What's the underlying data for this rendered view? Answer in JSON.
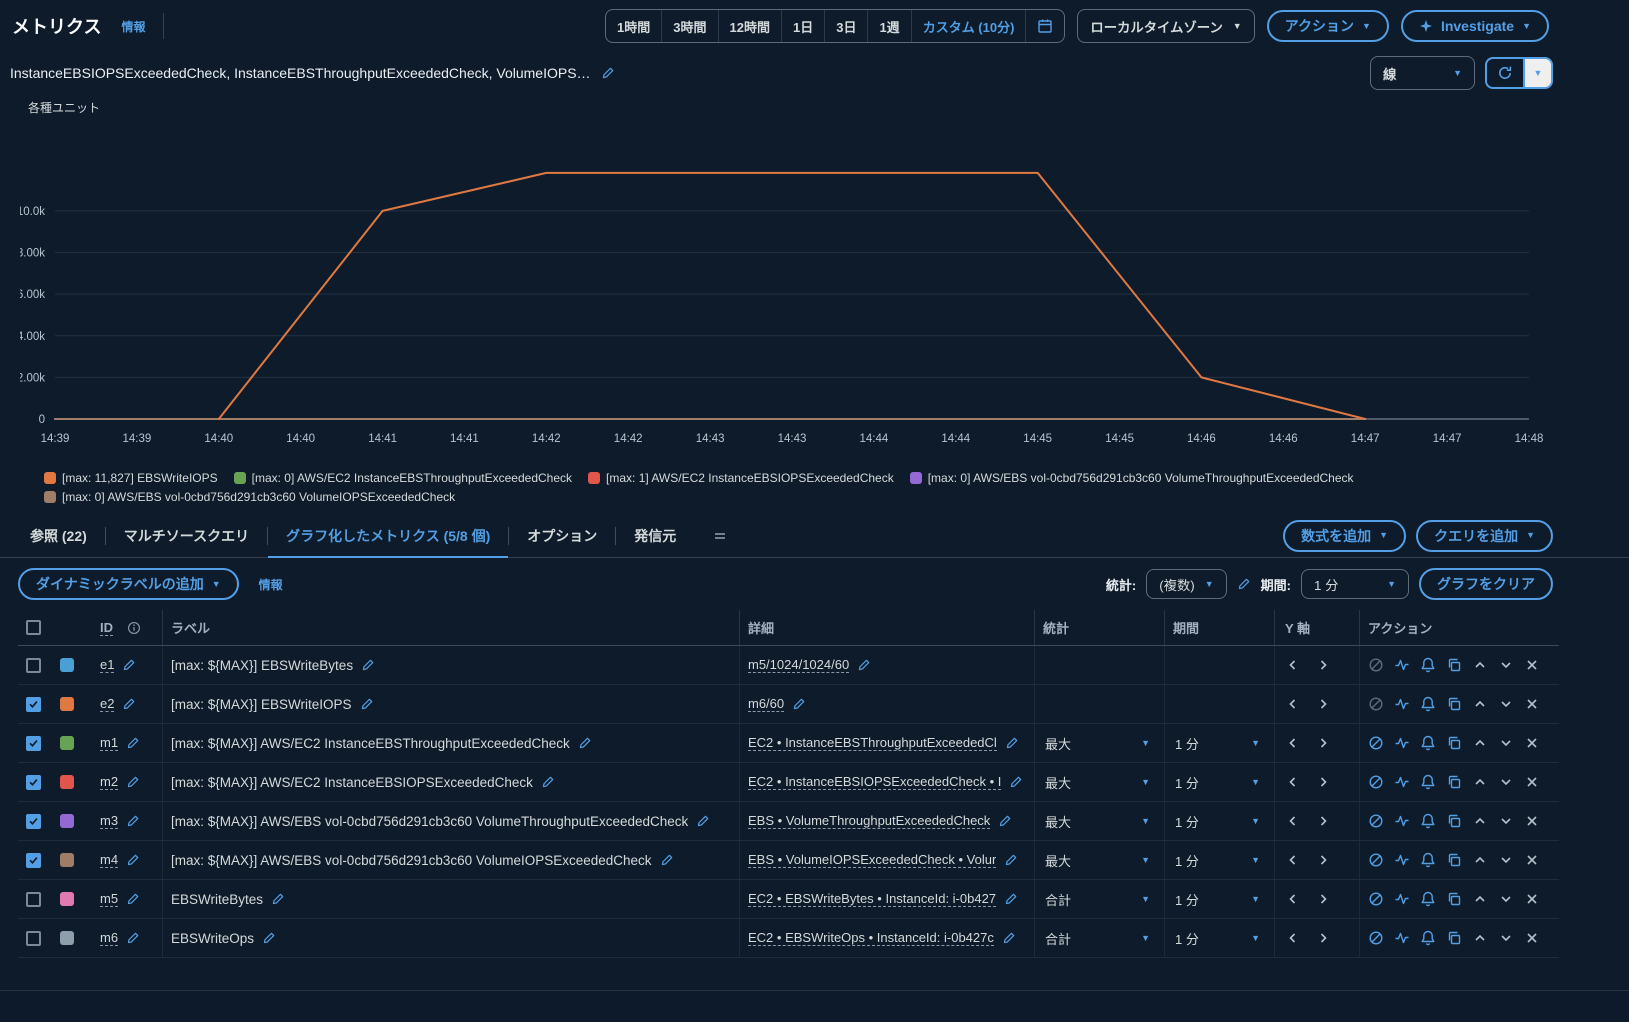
{
  "header": {
    "title": "メトリクス",
    "info": "情報",
    "time_ranges": [
      "1時間",
      "3時間",
      "12時間",
      "1日",
      "3日",
      "1週"
    ],
    "custom_range": "カスタム (10分)",
    "timezone_select": "ローカルタイムゾーン",
    "actions_button": "アクション",
    "investigate_button": "Investigate"
  },
  "graph_header": {
    "title": "InstanceEBSIOPSExceededCheck, InstanceEBSThroughputExceededCheck, VolumeIOPS…",
    "chart_type_select": "線"
  },
  "chart_data": {
    "type": "line",
    "ylabel": "各種ユニット",
    "x_ticks": [
      "14:39",
      "14:39",
      "14:40",
      "14:40",
      "14:41",
      "14:41",
      "14:42",
      "14:42",
      "14:43",
      "14:43",
      "14:44",
      "14:44",
      "14:45",
      "14:45",
      "14:46",
      "14:46",
      "14:47",
      "14:47",
      "14:48"
    ],
    "y_ticks": [
      {
        "label": "0",
        "value": 0
      },
      {
        "label": "2.00k",
        "value": 2000
      },
      {
        "label": "4.00k",
        "value": 4000
      },
      {
        "label": "6.00k",
        "value": 6000
      },
      {
        "label": "8.00k",
        "value": 8000
      },
      {
        "label": "10.0k",
        "value": 10000
      }
    ],
    "ylim": [
      0,
      13600
    ],
    "x_range_minutes": [
      0,
      9
    ],
    "grid": true,
    "legend_position": "bottom",
    "series": [
      {
        "name": "EBSWriteIOPS",
        "color": "#e07941",
        "legend_label": "[max: 11,827] EBSWriteIOPS",
        "points": [
          [
            1,
            0
          ],
          [
            2,
            10000
          ],
          [
            3,
            11827
          ],
          [
            6,
            11827
          ],
          [
            7,
            2000
          ],
          [
            8,
            0
          ]
        ]
      },
      {
        "name": "AWS/EC2 InstanceEBSThroughputExceededCheck",
        "color": "#67a353",
        "legend_label": "[max: 0] AWS/EC2 InstanceEBSThroughputExceededCheck",
        "points": [
          [
            0,
            0
          ],
          [
            8,
            0
          ]
        ]
      },
      {
        "name": "AWS/EC2 InstanceEBSIOPSExceededCheck",
        "color": "#e0564b",
        "legend_label": "[max: 1] AWS/EC2 InstanceEBSIOPSExceededCheck",
        "points": [
          [
            0,
            0
          ],
          [
            8,
            0
          ]
        ]
      },
      {
        "name": "AWS/EBS vol-0cbd756d291cb3c60 VolumeThroughputExceededCheck",
        "color": "#9469d6",
        "legend_label": "[max: 0] AWS/EBS vol-0cbd756d291cb3c60 VolumeThroughputExceededCheck",
        "points": [
          [
            0,
            0
          ],
          [
            8,
            0
          ]
        ]
      },
      {
        "name": "AWS/EBS vol-0cbd756d291cb3c60 VolumeIOPSExceededCheck",
        "color": "#a07d67",
        "legend_label": "[max: 0] AWS/EBS vol-0cbd756d291cb3c60 VolumeIOPSExceededCheck",
        "points": [
          [
            0,
            0
          ],
          [
            8,
            0
          ]
        ]
      }
    ]
  },
  "tabs": {
    "items": [
      {
        "label": "参照 (22)",
        "active": false
      },
      {
        "label": "マルチソースクエリ",
        "active": false
      },
      {
        "label": "グラフ化したメトリクス (5/8 個)",
        "active": true
      },
      {
        "label": "オプション",
        "active": false
      },
      {
        "label": "発信元",
        "active": false
      }
    ],
    "add_math_button": "数式を追加",
    "add_query_button": "クエリを追加"
  },
  "toolbar": {
    "dynamic_label_button": "ダイナミックラベルの追加",
    "info": "情報",
    "statistic_label": "統計:",
    "statistic_value": "(複数)",
    "period_label": "期間:",
    "period_value": "1 分",
    "clear_graph_button": "グラフをクリア"
  },
  "table": {
    "columns": {
      "id": "ID",
      "label": "ラベル",
      "detail": "詳細",
      "stat": "統計",
      "period": "期間",
      "yaxis": "Y 軸",
      "actions": "アクション"
    },
    "action_icon_names": [
      "ban-icon",
      "anomaly-detection-icon",
      "alarm-bell-icon",
      "duplicate-icon",
      "move-up-icon",
      "move-down-icon",
      "remove-icon"
    ],
    "rows": [
      {
        "id": "e1",
        "checked": false,
        "color": "#4a9fd4",
        "label": "[max: ${MAX}] EBSWriteBytes",
        "detail": "m5/1024/1024/60",
        "stat": "",
        "period": "",
        "ban_disabled": true
      },
      {
        "id": "e2",
        "checked": true,
        "color": "#e07941",
        "label": "[max: ${MAX}] EBSWriteIOPS",
        "detail": "m6/60",
        "stat": "",
        "period": "",
        "ban_disabled": true
      },
      {
        "id": "m1",
        "checked": true,
        "color": "#67a353",
        "label": "[max: ${MAX}] AWS/EC2 InstanceEBSThroughputExceededCheck",
        "detail": "EC2 • InstanceEBSThroughputExceededCl",
        "stat": "最大",
        "period": "1 分",
        "ban_disabled": false
      },
      {
        "id": "m2",
        "checked": true,
        "color": "#e0564b",
        "label": "[max: ${MAX}] AWS/EC2 InstanceEBSIOPSExceededCheck",
        "detail": "EC2 • InstanceEBSIOPSExceededCheck • I",
        "stat": "最大",
        "period": "1 分",
        "ban_disabled": false
      },
      {
        "id": "m3",
        "checked": true,
        "color": "#9469d6",
        "label": "[max: ${MAX}] AWS/EBS vol-0cbd756d291cb3c60 VolumeThroughputExceededCheck",
        "detail": "EBS • VolumeThroughputExceededCheck",
        "stat": "最大",
        "period": "1 分",
        "ban_disabled": false
      },
      {
        "id": "m4",
        "checked": true,
        "color": "#a07d67",
        "label": "[max: ${MAX}] AWS/EBS vol-0cbd756d291cb3c60 VolumeIOPSExceededCheck",
        "detail": "EBS • VolumeIOPSExceededCheck • Volur",
        "stat": "最大",
        "period": "1 分",
        "ban_disabled": false
      },
      {
        "id": "m5",
        "checked": false,
        "color": "#e07ab1",
        "label": "EBSWriteBytes",
        "detail": "EC2 • EBSWriteBytes • InstanceId: i-0b427",
        "stat": "合計",
        "period": "1 分",
        "ban_disabled": false
      },
      {
        "id": "m6",
        "checked": false,
        "color": "#8c9fab",
        "label": "EBSWriteOps",
        "detail": "EC2 • EBSWriteOps • InstanceId: i-0b427c",
        "stat": "合計",
        "period": "1 分",
        "ban_disabled": false
      }
    ]
  },
  "colors": {
    "accent": "#539fe5",
    "background": "#0e1b2a"
  }
}
